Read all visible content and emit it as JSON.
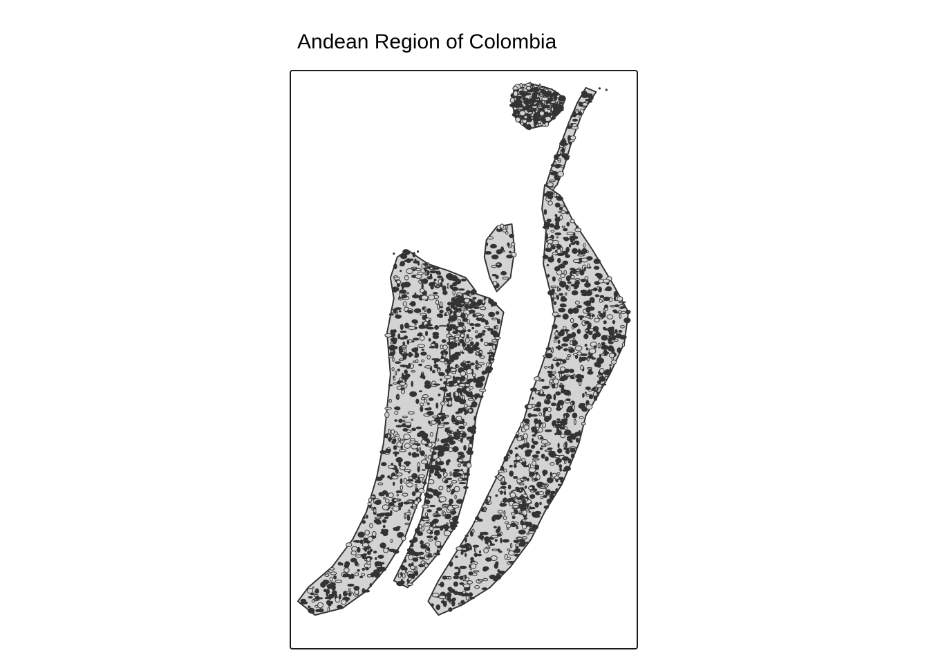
{
  "map": {
    "title": "Andean Region of Colombia",
    "colors": {
      "fill": "#d3d3d3",
      "outline": "#333333",
      "frame": "#1a1a1a",
      "background": "#ffffff"
    }
  }
}
